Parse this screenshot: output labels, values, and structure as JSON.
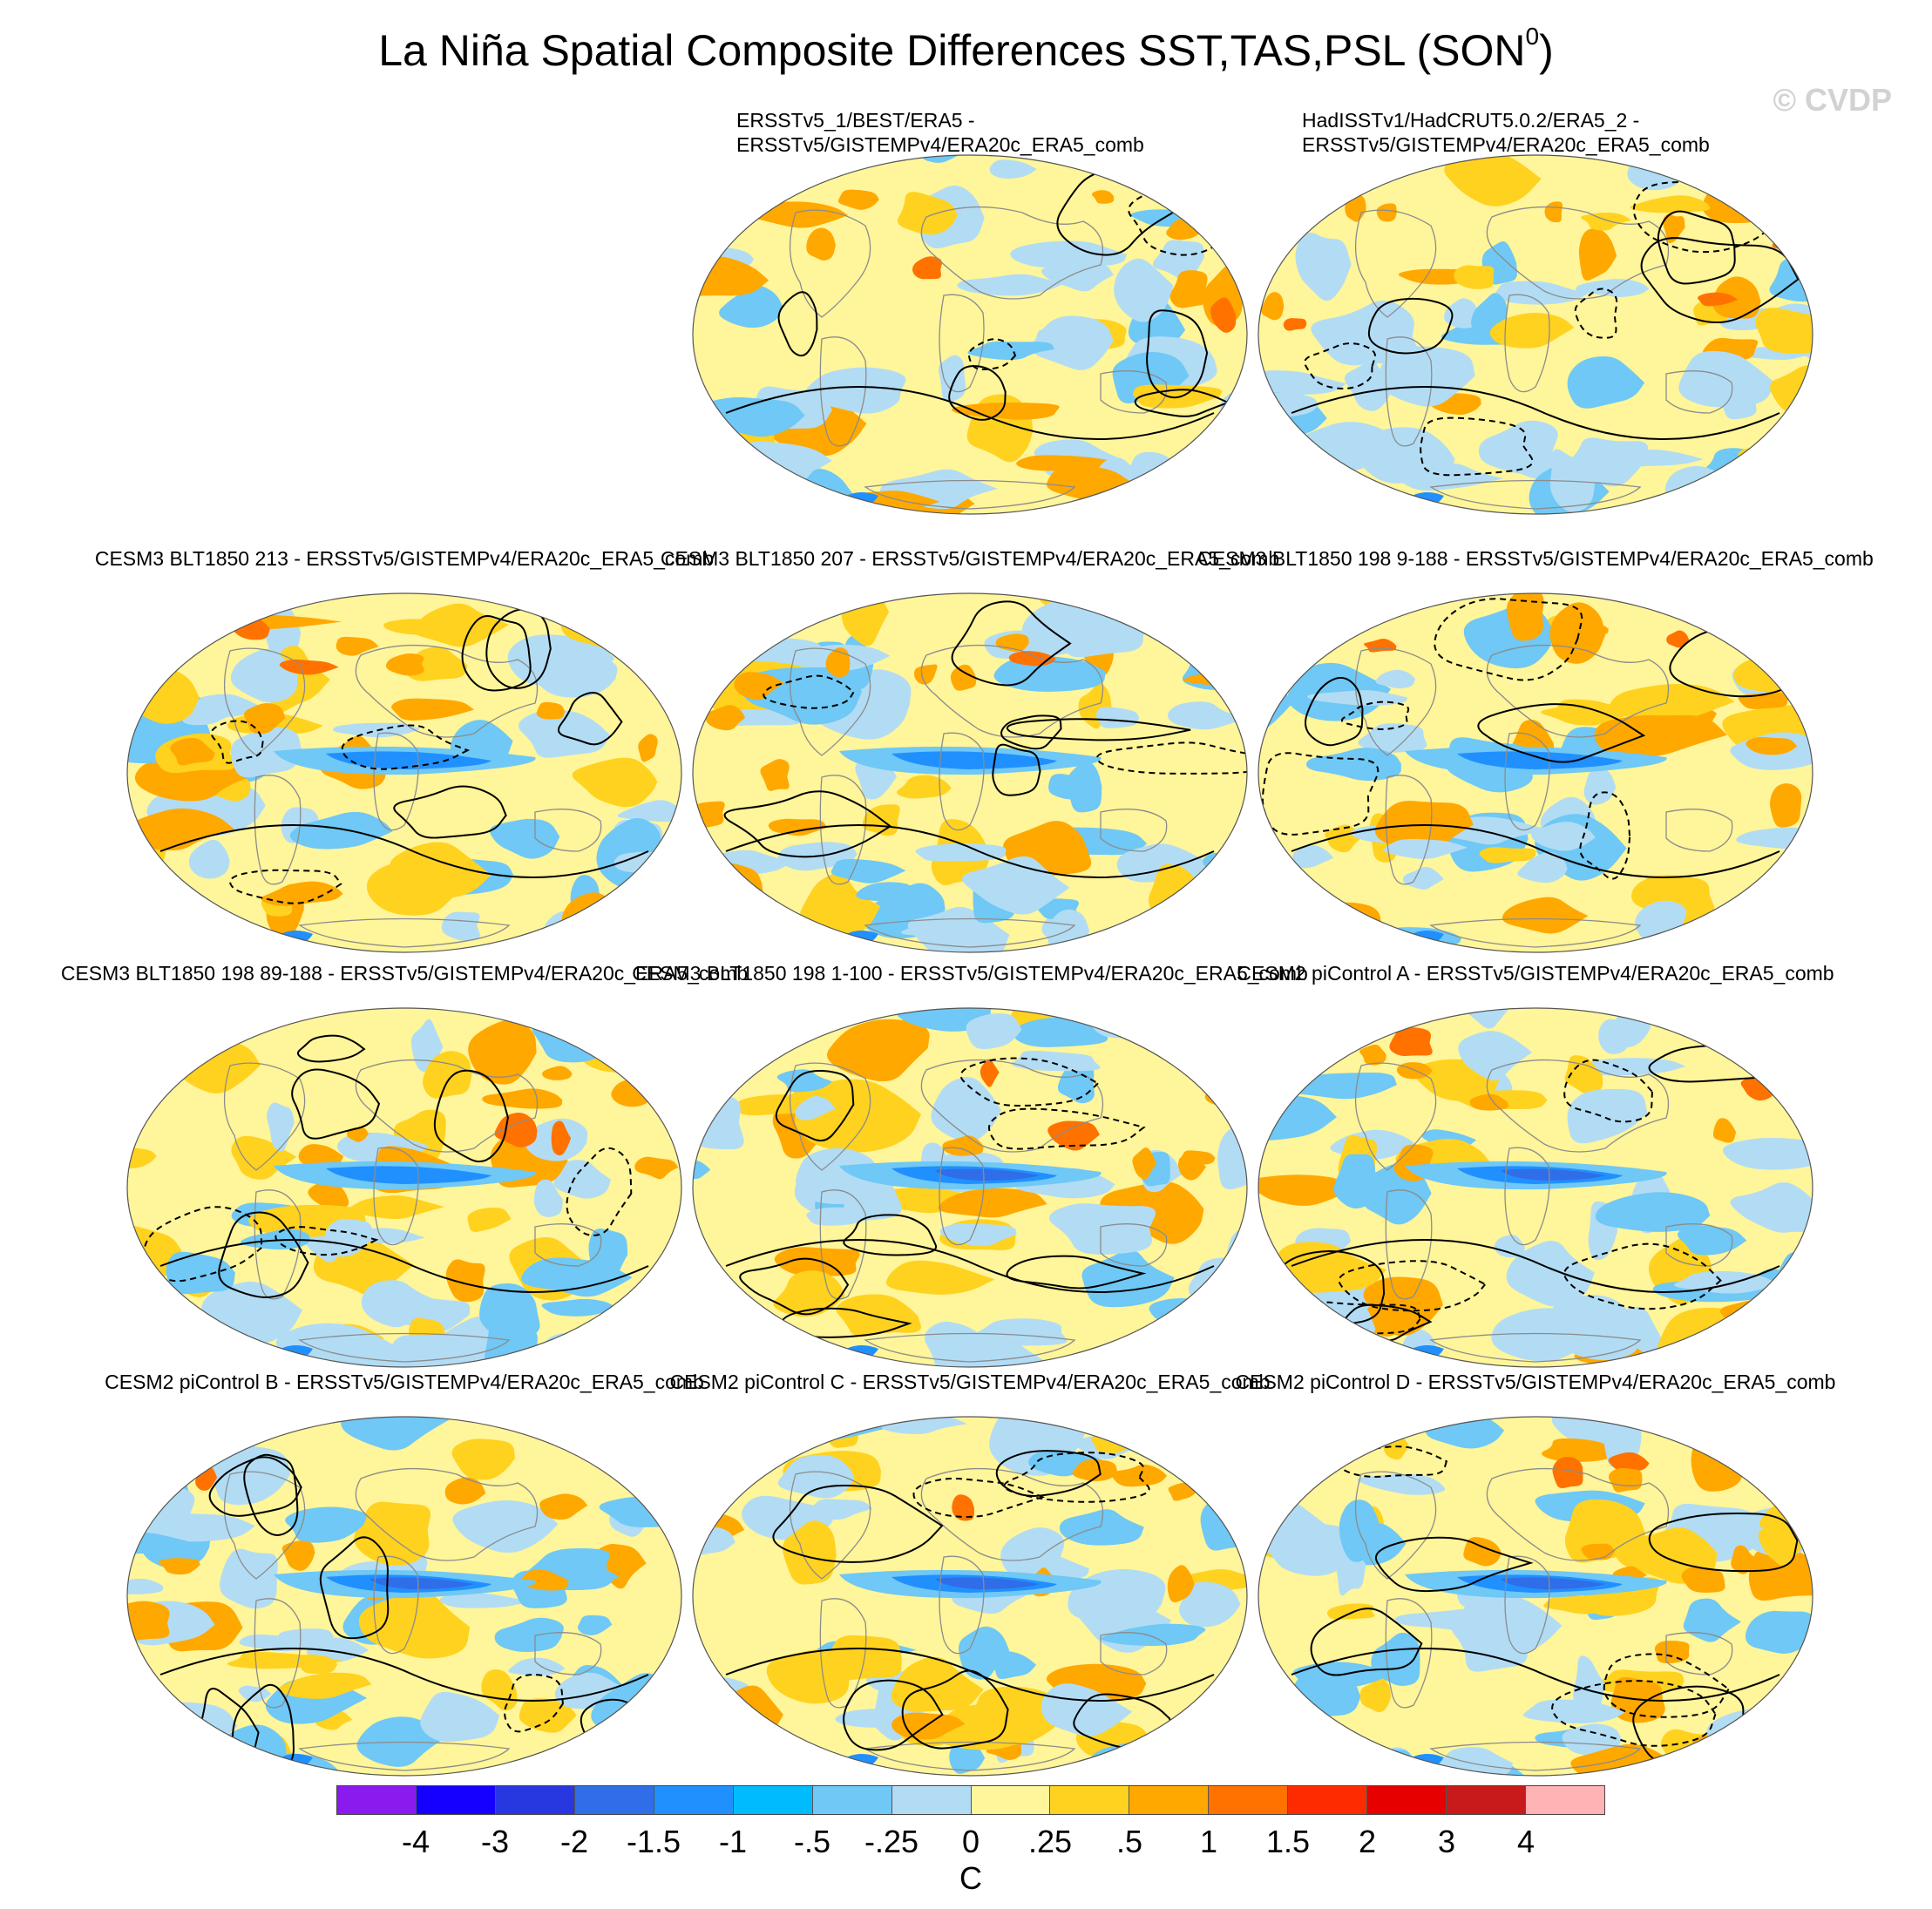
{
  "title": {
    "text": "La Niña Spatial Composite Differences SST,TAS,PSL (SON",
    "superscript": "0",
    "suffix": ")"
  },
  "watermark": "© CVDP",
  "panels": [
    {
      "line1": "ERSSTv5_1/BEST/ERA5 -",
      "line2": "ERSSTv5/GISTEMPv4/ERA20c_ERA5_comb"
    },
    {
      "line1": "HadISSTv1/HadCRUT5.0.2/ERA5_2 -",
      "line2": "ERSSTv5/GISTEMPv4/ERA20c_ERA5_comb"
    },
    {
      "label": "CESM3 BLT1850 213 - ERSSTv5/GISTEMPv4/ERA20c_ERA5_comb"
    },
    {
      "label": "CESM3 BLT1850 207 - ERSSTv5/GISTEMPv4/ERA20c_ERA5_comb"
    },
    {
      "label": "CESM3 BLT1850 198 9-188 - ERSSTv5/GISTEMPv4/ERA20c_ERA5_comb"
    },
    {
      "label": "CESM3 BLT1850 198 89-188 - ERSSTv5/GISTEMPv4/ERA20c_ERA5_comb"
    },
    {
      "label": "CESM3 BLT1850 198 1-100 - ERSSTv5/GISTEMPv4/ERA20c_ERA5_comb"
    },
    {
      "label": "CESM2 piControl A - ERSSTv5/GISTEMPv4/ERA20c_ERA5_comb"
    },
    {
      "label": "CESM2 piControl B - ERSSTv5/GISTEMPv4/ERA20c_ERA5_comb"
    },
    {
      "label": "CESM2 piControl C - ERSSTv5/GISTEMPv4/ERA20c_ERA5_comb"
    },
    {
      "label": "CESM2 piControl D - ERSSTv5/GISTEMPv4/ERA20c_ERA5_comb"
    }
  ],
  "colorbar": {
    "colors": [
      "#8a1aed",
      "#1500ff",
      "#2838e0",
      "#2f6ee8",
      "#2090ff",
      "#00bcff",
      "#6fc8f5",
      "#b2dcf4",
      "#fff59a",
      "#ffd21f",
      "#ffa800",
      "#ff7200",
      "#ff2b00",
      "#e60000",
      "#c81a1a",
      "#ffb3b5"
    ],
    "labels": [
      "-4",
      "-3",
      "-2",
      "-1.5",
      "-1",
      "-.5",
      "-.25",
      "0",
      ".25",
      ".5",
      "1",
      "1.5",
      "2",
      "3",
      "4"
    ],
    "units": "C"
  }
}
